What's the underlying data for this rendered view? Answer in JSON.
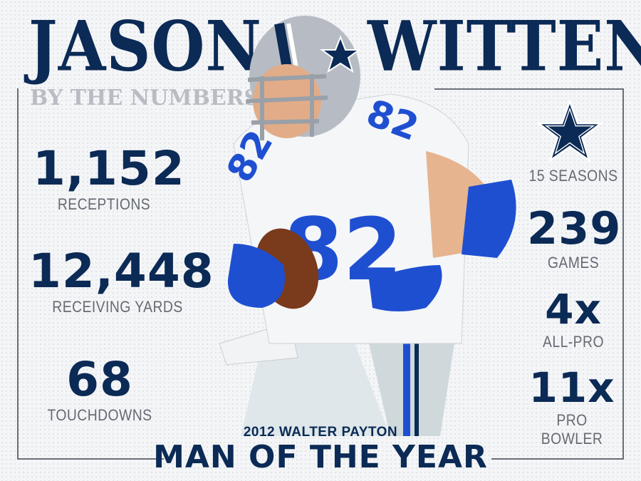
{
  "header": {
    "first_name": "JASON",
    "last_name": "WITTEN",
    "subtitle": "BY THE NUMBERS"
  },
  "left_stats": [
    {
      "value": "1,152",
      "label": "RECEPTIONS"
    },
    {
      "value": "12,448",
      "label": "RECEIVING YARDS"
    },
    {
      "value": "68",
      "label": "TOUCHDOWNS"
    }
  ],
  "right_stats": [
    {
      "value": "",
      "label": "15 SEASONS"
    },
    {
      "value": "239",
      "label": "GAMES"
    },
    {
      "value": "4x",
      "label": "ALL-PRO"
    },
    {
      "value": "11x",
      "label": "PRO BOWLER"
    }
  ],
  "award": {
    "line1": "2012 WALTER PAYTON",
    "line2": "MAN OF THE YEAR"
  },
  "player": {
    "jersey_number": "82"
  },
  "icons": {
    "team_logo": "star-icon"
  },
  "colors": {
    "navy": "#0b2a55",
    "gray_label": "#666a72",
    "subtitle_gray": "#b9bcc2",
    "royal_blue": "#1f4fd1",
    "helmet_silver": "#b7bcc4"
  }
}
